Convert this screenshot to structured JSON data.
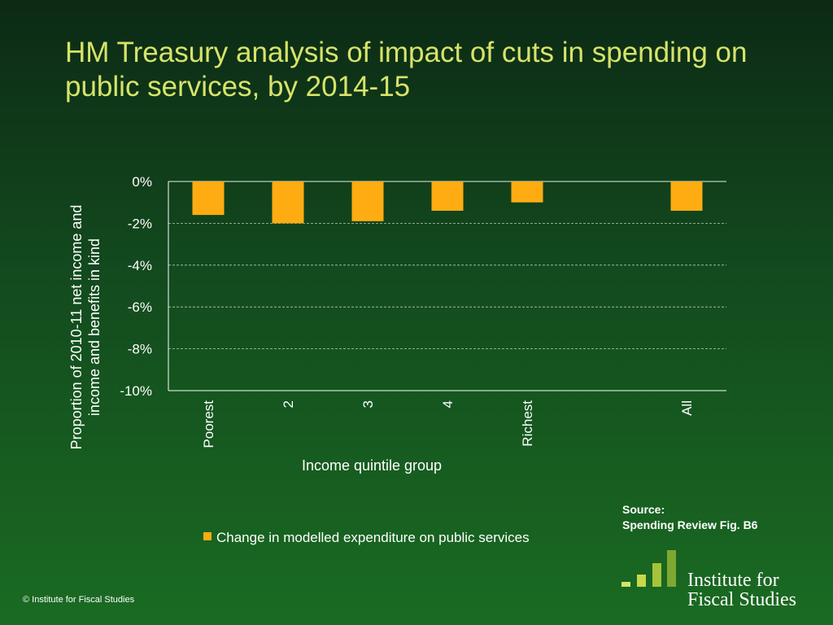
{
  "title": "HM Treasury analysis of impact of cuts in spending on public services, by 2014-15",
  "source": {
    "line1": "Source:",
    "line2": "Spending Review Fig. B6"
  },
  "copyright": "© Institute for Fiscal Studies",
  "logo": {
    "line1": "Institute for",
    "line2": "Fiscal Studies"
  },
  "colors": {
    "title": "#d7e36a",
    "bar": "#ffac12",
    "logo_bars": [
      "#d7e36a",
      "#c8d84a",
      "#a6c43a",
      "#7fa832"
    ]
  },
  "chart_data": {
    "type": "bar",
    "categories": [
      "Poorest",
      "2",
      "3",
      "4",
      "Richest",
      "",
      "All"
    ],
    "series": [
      {
        "name": "Change in modelled expenditure on public services",
        "values": [
          -1.6,
          -2.0,
          -1.9,
          -1.4,
          -1.0,
          null,
          -1.4
        ]
      }
    ],
    "ylim": [
      -10,
      0
    ],
    "yticks": [
      0,
      -2,
      -4,
      -6,
      -8,
      -10
    ],
    "ytick_labels": [
      "0%",
      "-2%",
      "-4%",
      "-6%",
      "-8%",
      "-10%"
    ],
    "xlabel": "Income quintile group",
    "ylabel": "Proportion of 2010-11 net income and income and benefits in kind",
    "grid": true,
    "legend": "bottom"
  }
}
